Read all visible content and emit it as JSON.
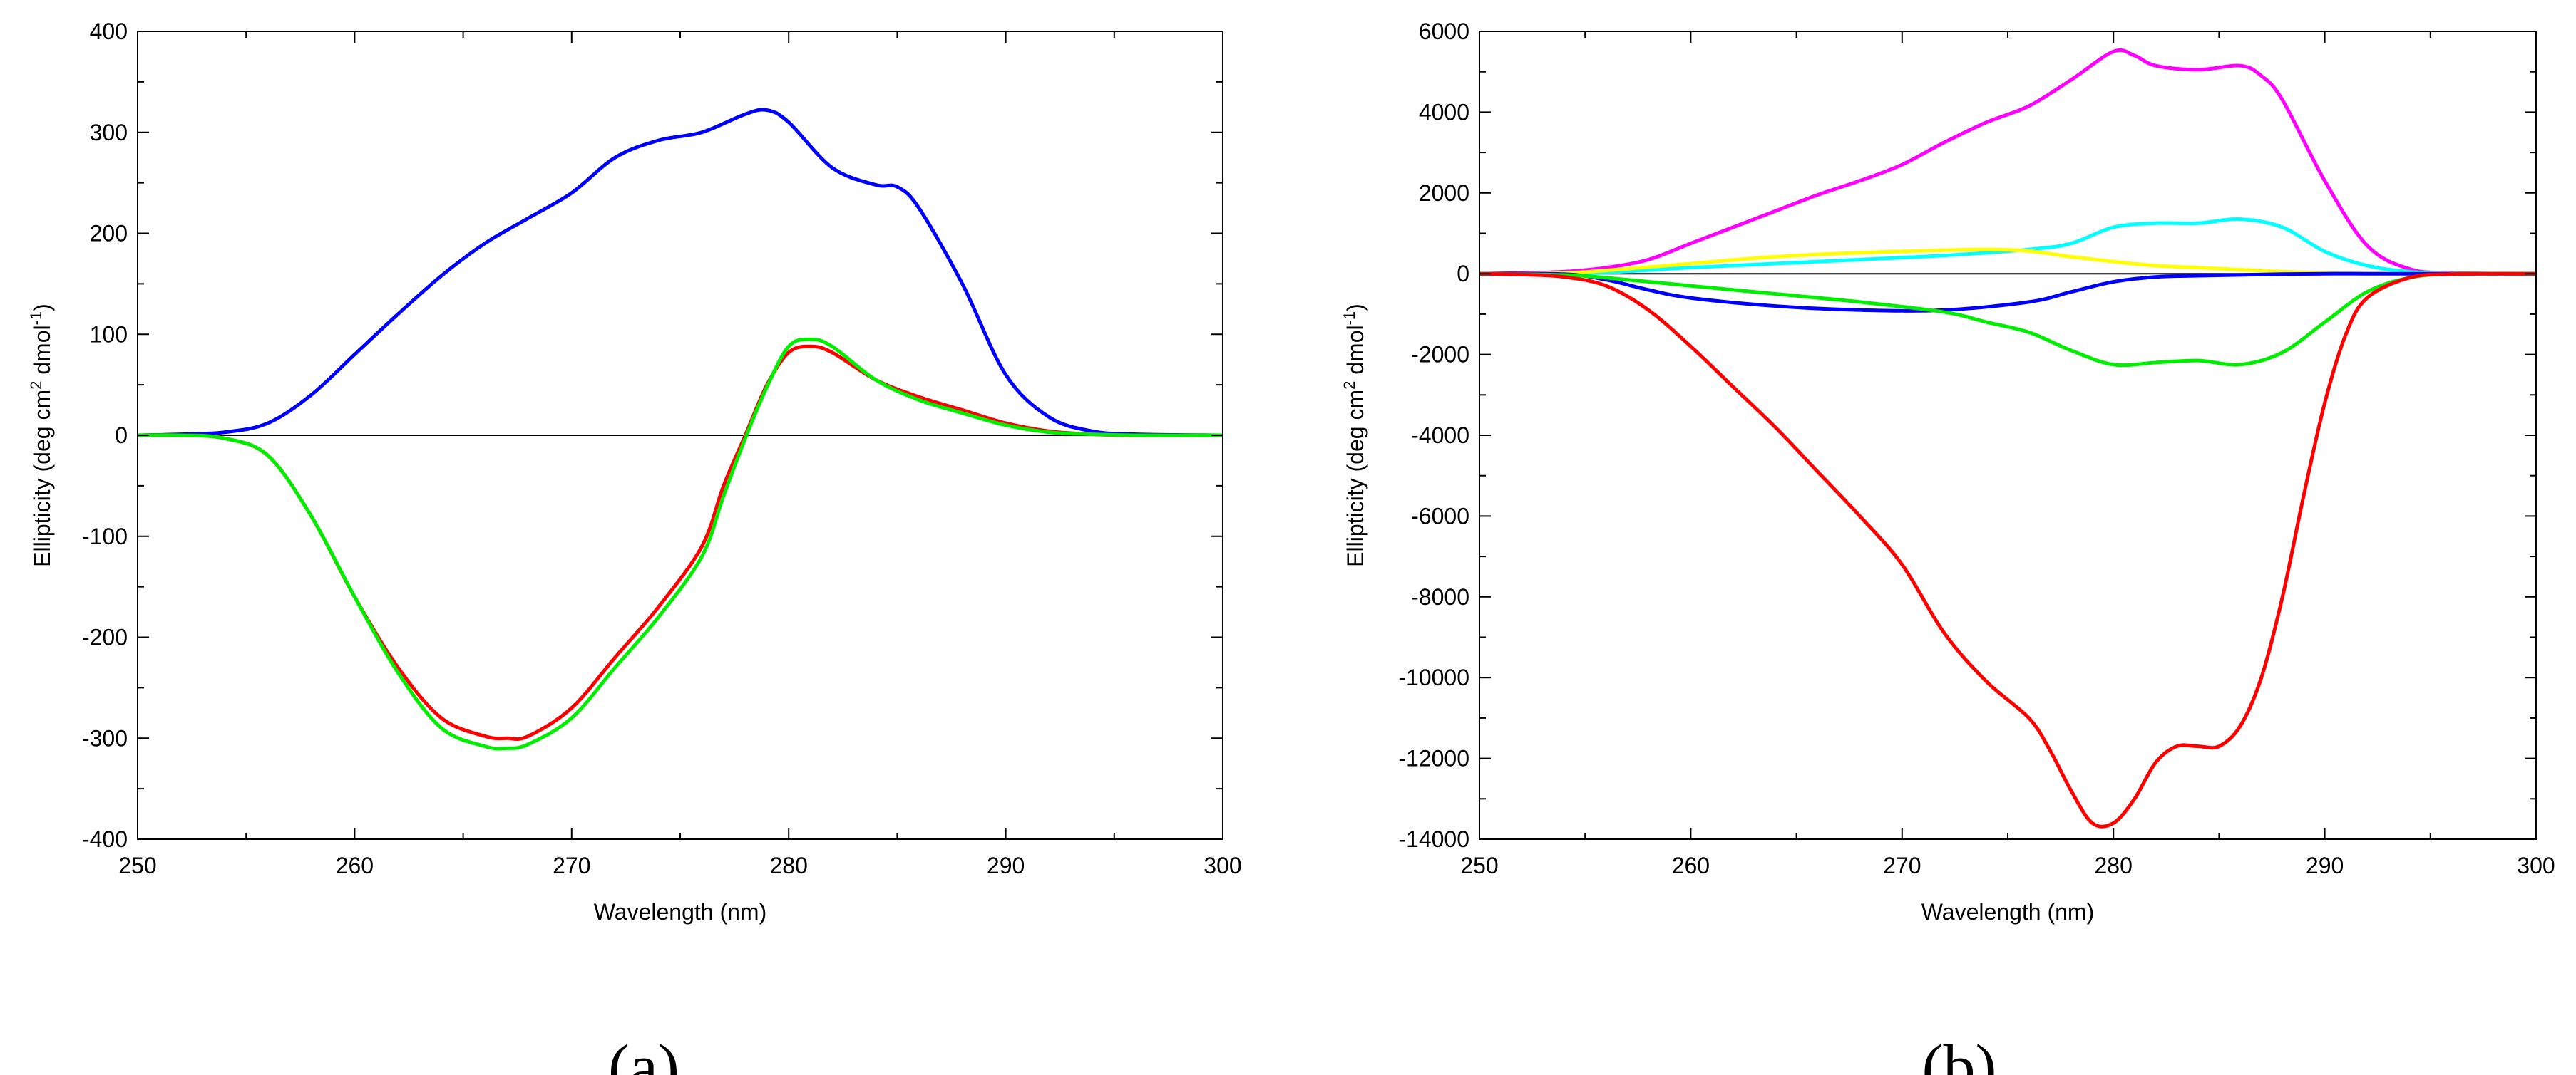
{
  "chart_data": [
    {
      "type": "line",
      "panel_label": "(a)",
      "xlabel": "Wavelength (nm)",
      "ylabel": "Ellipticity (deg cm² dmol⁻¹)",
      "ylabel_parts": [
        "Ellipticity (deg cm",
        "2",
        " dmol",
        "-1",
        ")"
      ],
      "xlim": [
        250,
        300
      ],
      "ylim": [
        -400,
        400
      ],
      "xticks": [
        250,
        260,
        270,
        280,
        290,
        300
      ],
      "yticks": [
        -400,
        -300,
        -200,
        -100,
        0,
        100,
        200,
        300,
        400
      ],
      "grid": false,
      "zero_line": true,
      "series": [
        {
          "color": "#0000ff",
          "x": [
            250,
            252,
            254,
            256,
            258,
            260,
            262,
            264,
            266,
            268,
            270,
            272,
            274,
            276,
            278,
            279,
            280,
            282,
            284,
            285,
            286,
            288,
            290,
            292,
            294,
            296,
            300
          ],
          "y": [
            0,
            1,
            3,
            12,
            40,
            80,
            120,
            158,
            190,
            215,
            240,
            275,
            292,
            300,
            318,
            322,
            310,
            265,
            248,
            246,
            225,
            150,
            60,
            18,
            4,
            1,
            0
          ]
        },
        {
          "color": "#ff0000",
          "x": [
            250,
            252,
            254,
            256,
            258,
            260,
            262,
            264,
            266,
            267,
            268,
            270,
            272,
            274,
            276,
            277,
            278,
            279,
            280,
            281,
            282,
            284,
            286,
            288,
            290,
            292,
            294,
            296,
            300
          ],
          "y": [
            0,
            0,
            -3,
            -20,
            -80,
            -160,
            -230,
            -280,
            -298,
            -300,
            -298,
            -270,
            -220,
            -170,
            -110,
            -50,
            0,
            50,
            82,
            88,
            82,
            55,
            38,
            25,
            12,
            4,
            1,
            0,
            0
          ]
        },
        {
          "color": "#00ee00",
          "x": [
            250,
            252,
            254,
            256,
            258,
            260,
            262,
            264,
            266,
            267,
            268,
            270,
            272,
            274,
            276,
            277,
            278,
            279,
            280,
            281,
            282,
            284,
            286,
            288,
            290,
            292,
            294,
            296,
            300
          ],
          "y": [
            0,
            0,
            -3,
            -20,
            -80,
            -160,
            -235,
            -290,
            -308,
            -310,
            -306,
            -280,
            -230,
            -180,
            -120,
            -60,
            -3,
            48,
            88,
            95,
            88,
            55,
            35,
            22,
            10,
            3,
            1,
            0,
            0
          ]
        }
      ]
    },
    {
      "type": "line",
      "panel_label": "(b)",
      "xlabel": "Wavelength (nm)",
      "ylabel": "Ellipticity (deg cm² dmol⁻¹)",
      "ylabel_parts": [
        "Ellipticity (deg cm",
        "2",
        " dmol",
        "-1",
        ")"
      ],
      "xlim": [
        250,
        300
      ],
      "ylim": [
        -14000,
        6000
      ],
      "xticks": [
        250,
        260,
        270,
        280,
        290,
        300
      ],
      "yticks": [
        -14000,
        -12000,
        -10000,
        -8000,
        -6000,
        -4000,
        -2000,
        0,
        2000,
        4000,
        6000
      ],
      "grid": false,
      "zero_line": true,
      "series": [
        {
          "color": "#ff00ff",
          "x": [
            250,
            252,
            254,
            256,
            258,
            260,
            262,
            264,
            266,
            268,
            270,
            272,
            274,
            276,
            278,
            280,
            281,
            282,
            284,
            286,
            287,
            288,
            290,
            292,
            294,
            296,
            300
          ],
          "y": [
            0,
            20,
            50,
            150,
            350,
            750,
            1150,
            1550,
            1950,
            2300,
            2700,
            3250,
            3750,
            4150,
            4800,
            5500,
            5400,
            5150,
            5050,
            5150,
            4900,
            4300,
            2300,
            700,
            120,
            20,
            0
          ]
        },
        {
          "color": "#00ffff",
          "x": [
            250,
            254,
            256,
            260,
            264,
            268,
            272,
            276,
            278,
            280,
            282,
            284,
            286,
            288,
            290,
            292,
            294,
            296,
            300
          ],
          "y": [
            0,
            10,
            30,
            150,
            250,
            350,
            450,
            600,
            750,
            1150,
            1250,
            1250,
            1350,
            1150,
            550,
            200,
            50,
            10,
            0
          ]
        },
        {
          "color": "#ffff00",
          "x": [
            250,
            254,
            256,
            260,
            264,
            268,
            272,
            274,
            276,
            278,
            280,
            282,
            284,
            286,
            288,
            290,
            292,
            300
          ],
          "y": [
            0,
            20,
            80,
            250,
            420,
            520,
            580,
            600,
            560,
            420,
            300,
            200,
            150,
            100,
            50,
            20,
            5,
            0
          ]
        },
        {
          "color": "#0000ff",
          "x": [
            250,
            254,
            256,
            258,
            260,
            264,
            268,
            272,
            276,
            278,
            280,
            282,
            284,
            286,
            288,
            290,
            292,
            300
          ],
          "y": [
            0,
            -10,
            -150,
            -400,
            -600,
            -800,
            -900,
            -900,
            -700,
            -450,
            -200,
            -80,
            -50,
            -30,
            -10,
            0,
            0,
            0
          ]
        },
        {
          "color": "#00ee00",
          "x": [
            250,
            254,
            256,
            260,
            264,
            268,
            272,
            274,
            276,
            278,
            280,
            282,
            284,
            286,
            288,
            290,
            292,
            294,
            296,
            300
          ],
          "y": [
            0,
            -30,
            -100,
            -300,
            -500,
            -700,
            -950,
            -1200,
            -1450,
            -1900,
            -2250,
            -2200,
            -2150,
            -2250,
            -1950,
            -1200,
            -450,
            -100,
            -10,
            0
          ]
        },
        {
          "color": "#ff0000",
          "x": [
            250,
            252,
            254,
            256,
            258,
            260,
            262,
            264,
            266,
            268,
            270,
            272,
            274,
            276,
            277,
            278,
            279,
            280,
            281,
            282,
            283,
            284,
            285,
            286,
            287,
            288,
            289,
            290,
            291,
            292,
            294,
            296,
            300
          ],
          "y": [
            0,
            -20,
            -80,
            -300,
            -900,
            -1800,
            -2800,
            -3800,
            -4900,
            -6000,
            -7200,
            -8900,
            -10100,
            -11000,
            -11800,
            -12800,
            -13600,
            -13600,
            -13000,
            -12100,
            -11700,
            -11700,
            -11700,
            -11200,
            -10000,
            -8000,
            -5500,
            -3200,
            -1500,
            -600,
            -100,
            -10,
            0
          ]
        }
      ]
    }
  ]
}
